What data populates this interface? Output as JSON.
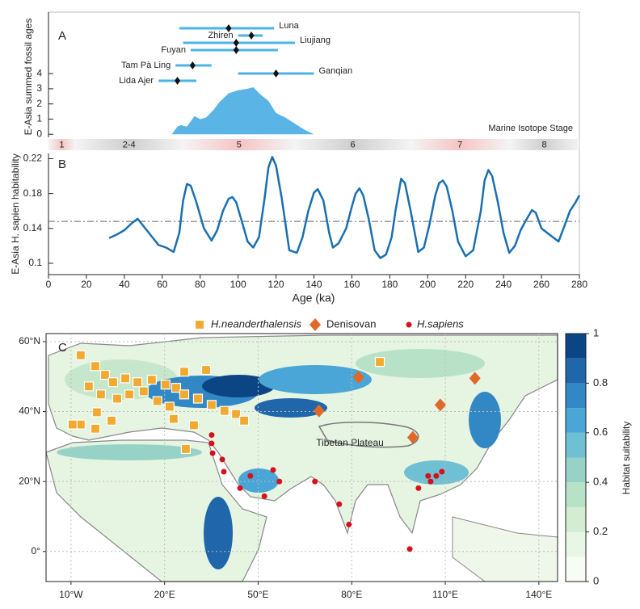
{
  "chart_data": [
    {
      "type": "errorbar",
      "label": "A",
      "ylabel": "E-Asia summed fossil ages",
      "categories": [
        "Luna",
        "Zhiren",
        "Liujiang",
        "Fuyan",
        "Tam Pà Ling",
        "Ganqian",
        "Lida Ajer"
      ],
      "values": [
        95,
        107,
        99,
        99,
        76,
        120,
        68
      ],
      "lower": [
        69,
        100,
        71,
        75,
        67,
        100,
        58
      ],
      "upper": [
        119,
        113,
        130,
        121,
        86,
        140,
        78
      ],
      "color": "#4db3e6",
      "summed": {
        "x": [
          65,
          68,
          70,
          73,
          77,
          80,
          83,
          87,
          90,
          95,
          100,
          105,
          108,
          112,
          116,
          120,
          125,
          130,
          135,
          140
        ],
        "values": [
          0,
          0.5,
          0.6,
          0.5,
          1.2,
          1.0,
          1.1,
          1.6,
          2.1,
          2.7,
          2.9,
          3.0,
          3.1,
          2.6,
          2.2,
          1.4,
          1.1,
          0.7,
          0.3,
          0
        ],
        "color": "#5ab4e6"
      },
      "ylim": [
        -0.2,
        8.05
      ],
      "yticks": [
        0,
        1,
        2,
        3,
        4
      ]
    },
    {
      "type": "stages",
      "title": "Marine Isotope Stage",
      "categories": [
        "1",
        "2-4",
        "5",
        "6",
        "7",
        "8"
      ],
      "bins": [
        0,
        14,
        71,
        130,
        191,
        243,
        280
      ],
      "colors": [
        "#f6c4c4",
        "#cfcfcf",
        "#f6c4c4",
        "#cfcfcf",
        "#f6c4c4",
        "#cfcfcf"
      ]
    },
    {
      "type": "line",
      "label": "B",
      "ylabel": "E-Asia H. sapien habitability",
      "xlabel": "Age (ka)",
      "x": [
        32,
        36,
        40,
        44,
        47,
        50,
        54,
        58,
        62,
        66,
        69,
        71,
        73,
        75,
        78,
        82,
        86,
        89,
        92,
        95,
        97,
        99,
        102,
        105,
        108,
        111,
        114,
        116,
        118,
        120,
        123,
        127,
        131,
        134,
        137,
        140,
        142,
        145,
        148,
        150,
        153,
        157,
        160,
        162,
        164,
        166,
        169,
        172,
        175,
        178,
        181,
        183,
        186,
        188,
        191,
        195,
        198,
        201,
        204,
        206,
        208,
        210,
        213,
        216,
        220,
        224,
        228,
        230,
        232,
        234,
        237,
        240,
        243,
        246,
        249,
        252,
        255,
        257,
        260,
        263,
        266,
        269,
        272,
        275,
        278,
        280
      ],
      "values": [
        0.129,
        0.133,
        0.138,
        0.146,
        0.151,
        0.143,
        0.132,
        0.121,
        0.118,
        0.113,
        0.135,
        0.172,
        0.191,
        0.189,
        0.17,
        0.14,
        0.126,
        0.138,
        0.16,
        0.174,
        0.176,
        0.17,
        0.148,
        0.125,
        0.118,
        0.13,
        0.175,
        0.21,
        0.222,
        0.212,
        0.175,
        0.115,
        0.112,
        0.13,
        0.16,
        0.181,
        0.185,
        0.172,
        0.135,
        0.118,
        0.123,
        0.14,
        0.165,
        0.18,
        0.186,
        0.178,
        0.15,
        0.115,
        0.106,
        0.11,
        0.13,
        0.16,
        0.197,
        0.192,
        0.16,
        0.113,
        0.118,
        0.145,
        0.178,
        0.192,
        0.195,
        0.188,
        0.16,
        0.125,
        0.108,
        0.115,
        0.16,
        0.195,
        0.207,
        0.2,
        0.17,
        0.135,
        0.112,
        0.12,
        0.138,
        0.15,
        0.161,
        0.158,
        0.14,
        0.135,
        0.13,
        0.125,
        0.142,
        0.16,
        0.17,
        0.178
      ],
      "color": "#1a6fb0",
      "threshold": 0.148,
      "xlim": [
        0,
        280
      ],
      "xticks": [
        0,
        20,
        40,
        60,
        80,
        100,
        120,
        140,
        160,
        180,
        200,
        220,
        240,
        260,
        280
      ],
      "ylim": [
        0.087,
        0.226
      ],
      "yticks": [
        0.1,
        0.14,
        0.18,
        0.22
      ]
    },
    {
      "type": "map",
      "label": "C",
      "annotation": "Tibetan Plateau",
      "grid": true,
      "xlim": [
        -18,
        146
      ],
      "ylim": [
        -8.6,
        62.3
      ],
      "xticks": [
        {
          "value": -10,
          "label": "10°W"
        },
        {
          "value": 20,
          "label": "20°E"
        },
        {
          "value": 50,
          "label": "50°E"
        },
        {
          "value": 80,
          "label": "80°E"
        },
        {
          "value": 110,
          "label": "110°E"
        },
        {
          "value": 140,
          "label": "140°E"
        }
      ],
      "yticks": [
        {
          "value": 0,
          "label": "0°"
        },
        {
          "value": 20,
          "label": "20°N"
        },
        {
          "value": 40,
          "label": "40°N"
        },
        {
          "value": 60,
          "label": "60°N"
        }
      ],
      "series": [
        {
          "name": "H.neanderthalensis",
          "marker": "square",
          "color": "#f2a92f",
          "x": [
            -6.9,
            -2.2,
            0.9,
            -4.3,
            -0.4,
            3.5,
            7.4,
            11.3,
            15.9,
            20.3,
            23.7,
            4.8,
            8.7,
            13.3,
            17.7,
            21.6,
            26.3,
            30.7,
            35.1,
            39.2,
            42.9,
            45.5,
            -1.7,
            -6.9,
            -2.2,
            3.0,
            26.3,
            33.3,
            29.4,
            26.8,
            89.0,
            -9.5,
            22.9
          ],
          "y": [
            56.1,
            53.0,
            50.5,
            47.2,
            44.9,
            48.4,
            49.5,
            48.4,
            49.1,
            47.7,
            46.8,
            43.7,
            44.9,
            45.8,
            43.0,
            41.4,
            44.9,
            43.7,
            41.9,
            40.2,
            39.3,
            37.4,
            39.8,
            36.3,
            35.1,
            37.4,
            51.4,
            51.9,
            36.1,
            29.3,
            54.2,
            36.3,
            37.9
          ]
        },
        {
          "name": "Denisovan",
          "marker": "diamond",
          "color": "#e0692a",
          "x": [
            82.2,
            69.5,
            99.6,
            108.4,
            119.5
          ],
          "y": [
            49.8,
            40.2,
            32.6,
            41.9,
            49.5
          ]
        },
        {
          "name": "H.sapiens",
          "marker": "circle",
          "color": "#d8101e",
          "x": [
            35.1,
            35.1,
            35.4,
            38.5,
            39.0,
            47.5,
            54.8,
            56.8,
            44.2,
            52.0,
            68.2,
            76.0,
            79.1,
            98.6,
            101.4,
            104.5,
            105.3,
            107.1,
            108.9
          ],
          "y": [
            33.3,
            30.9,
            28.1,
            26.3,
            22.8,
            21.6,
            23.3,
            20.0,
            18.1,
            15.8,
            20.0,
            13.5,
            7.7,
            0.7,
            18.1,
            21.6,
            20.0,
            21.6,
            22.8
          ]
        }
      ],
      "colorbar": {
        "title": "Habitat suitability",
        "lim": [
          0,
          1
        ],
        "ticks": [
          0,
          0.2,
          0.4,
          0.6,
          0.8,
          1
        ],
        "colors": [
          "#f7fcf5",
          "#e8f6e6",
          "#d2edd2",
          "#b7e2c8",
          "#96d3c6",
          "#6fc0d2",
          "#4aa6d6",
          "#3288c4",
          "#1f67aa",
          "#0c4584"
        ]
      }
    }
  ]
}
